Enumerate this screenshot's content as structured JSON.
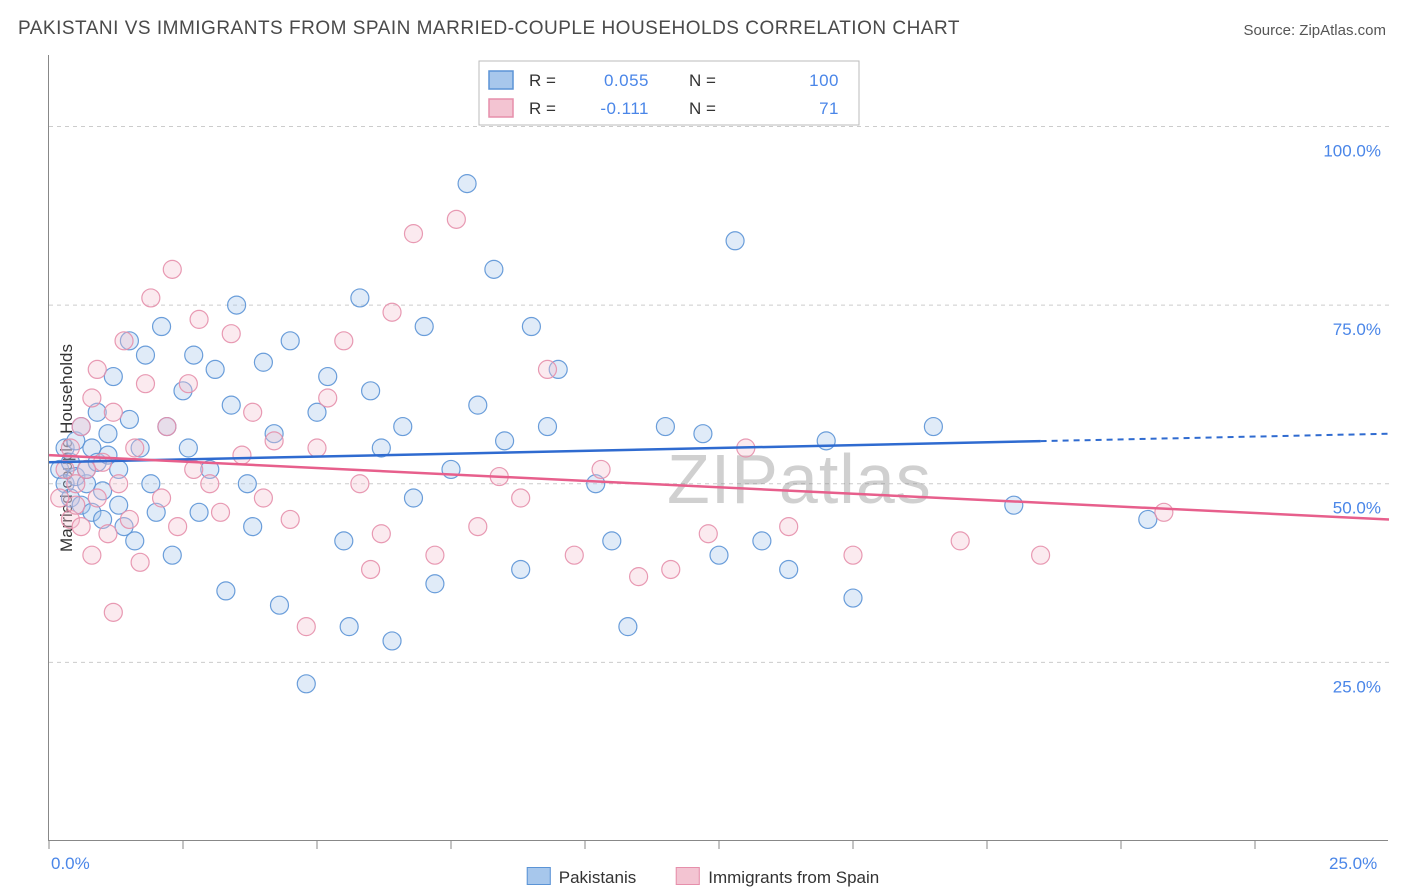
{
  "title": "PAKISTANI VS IMMIGRANTS FROM SPAIN MARRIED-COUPLE HOUSEHOLDS CORRELATION CHART",
  "source": "Source: ZipAtlas.com",
  "ylabel": "Married-couple Households",
  "watermark": "ZIPatlas",
  "chart": {
    "type": "scatter",
    "background_color": "#ffffff",
    "grid_color": "#cccccc",
    "axis_color": "#888888",
    "xlim": [
      0,
      25
    ],
    "ylim": [
      0,
      110
    ],
    "ytick_positions": [
      25,
      50,
      75,
      100
    ],
    "ytick_labels": [
      "25.0%",
      "50.0%",
      "75.0%",
      "100.0%"
    ],
    "x_axis_labels": {
      "left": "0.0%",
      "right": "25.0%"
    },
    "xtick_positions": [
      0,
      2.5,
      5,
      7.5,
      10,
      12.5,
      15,
      17.5,
      20,
      22.5
    ],
    "point_radius": 9
  },
  "series": [
    {
      "name": "Pakistanis",
      "fill": "#a7c7ec",
      "stroke": "#5b94d6",
      "trend_color": "#2f6bd0",
      "R": "0.055",
      "N": "100",
      "trend": {
        "y_at_x0": 53.0,
        "y_at_xmax": 57.0,
        "solid_until_x": 18.5
      },
      "points": [
        [
          0.2,
          52
        ],
        [
          0.3,
          50
        ],
        [
          0.3,
          55
        ],
        [
          0.4,
          48
        ],
        [
          0.4,
          53
        ],
        [
          0.5,
          56
        ],
        [
          0.5,
          51
        ],
        [
          0.6,
          47
        ],
        [
          0.6,
          58
        ],
        [
          0.7,
          50
        ],
        [
          0.7,
          52
        ],
        [
          0.8,
          55
        ],
        [
          0.8,
          46
        ],
        [
          0.9,
          53
        ],
        [
          0.9,
          60
        ],
        [
          1.0,
          49
        ],
        [
          1.0,
          45
        ],
        [
          1.1,
          57
        ],
        [
          1.1,
          54
        ],
        [
          1.2,
          65
        ],
        [
          1.3,
          52
        ],
        [
          1.3,
          47
        ],
        [
          1.4,
          44
        ],
        [
          1.5,
          59
        ],
        [
          1.5,
          70
        ],
        [
          1.6,
          42
        ],
        [
          1.7,
          55
        ],
        [
          1.8,
          68
        ],
        [
          1.9,
          50
        ],
        [
          2.0,
          46
        ],
        [
          2.1,
          72
        ],
        [
          2.2,
          58
        ],
        [
          2.3,
          40
        ],
        [
          2.5,
          63
        ],
        [
          2.6,
          55
        ],
        [
          2.7,
          68
        ],
        [
          2.8,
          46
        ],
        [
          3.0,
          52
        ],
        [
          3.1,
          66
        ],
        [
          3.3,
          35
        ],
        [
          3.4,
          61
        ],
        [
          3.5,
          75
        ],
        [
          3.7,
          50
        ],
        [
          3.8,
          44
        ],
        [
          4.0,
          67
        ],
        [
          4.2,
          57
        ],
        [
          4.3,
          33
        ],
        [
          4.5,
          70
        ],
        [
          4.8,
          22
        ],
        [
          5.0,
          60
        ],
        [
          5.2,
          65
        ],
        [
          5.5,
          42
        ],
        [
          5.6,
          30
        ],
        [
          5.8,
          76
        ],
        [
          6.0,
          63
        ],
        [
          6.2,
          55
        ],
        [
          6.4,
          28
        ],
        [
          6.6,
          58
        ],
        [
          6.8,
          48
        ],
        [
          7.0,
          72
        ],
        [
          7.2,
          36
        ],
        [
          7.5,
          52
        ],
        [
          7.8,
          92
        ],
        [
          8.0,
          61
        ],
        [
          8.3,
          80
        ],
        [
          8.5,
          56
        ],
        [
          8.8,
          38
        ],
        [
          9.0,
          72
        ],
        [
          9.3,
          58
        ],
        [
          9.5,
          66
        ],
        [
          10.2,
          50
        ],
        [
          10.5,
          42
        ],
        [
          10.8,
          30
        ],
        [
          11.5,
          58
        ],
        [
          12.2,
          57
        ],
        [
          12.5,
          40
        ],
        [
          12.8,
          84
        ],
        [
          13.3,
          42
        ],
        [
          13.8,
          38
        ],
        [
          14.5,
          56
        ],
        [
          15.0,
          34
        ],
        [
          16.5,
          58
        ],
        [
          18.0,
          47
        ],
        [
          20.5,
          45
        ]
      ]
    },
    {
      "name": "Immigrants from Spain",
      "fill": "#f3c4d2",
      "stroke": "#e68fab",
      "trend_color": "#e75f8c",
      "R": "-0.111",
      "N": "71",
      "trend": {
        "y_at_x0": 54.0,
        "y_at_xmax": 45.0,
        "solid_until_x": 25
      },
      "points": [
        [
          0.2,
          48
        ],
        [
          0.3,
          52
        ],
        [
          0.4,
          55
        ],
        [
          0.4,
          45
        ],
        [
          0.5,
          50
        ],
        [
          0.5,
          47
        ],
        [
          0.6,
          58
        ],
        [
          0.6,
          44
        ],
        [
          0.7,
          52
        ],
        [
          0.8,
          62
        ],
        [
          0.8,
          40
        ],
        [
          0.9,
          48
        ],
        [
          0.9,
          66
        ],
        [
          1.0,
          53
        ],
        [
          1.1,
          43
        ],
        [
          1.2,
          60
        ],
        [
          1.2,
          32
        ],
        [
          1.3,
          50
        ],
        [
          1.4,
          70
        ],
        [
          1.5,
          45
        ],
        [
          1.6,
          55
        ],
        [
          1.7,
          39
        ],
        [
          1.8,
          64
        ],
        [
          1.9,
          76
        ],
        [
          2.1,
          48
        ],
        [
          2.2,
          58
        ],
        [
          2.3,
          80
        ],
        [
          2.4,
          44
        ],
        [
          2.6,
          64
        ],
        [
          2.7,
          52
        ],
        [
          2.8,
          73
        ],
        [
          3.0,
          50
        ],
        [
          3.2,
          46
        ],
        [
          3.4,
          71
        ],
        [
          3.6,
          54
        ],
        [
          3.8,
          60
        ],
        [
          4.0,
          48
        ],
        [
          4.2,
          56
        ],
        [
          4.5,
          45
        ],
        [
          4.8,
          30
        ],
        [
          5.0,
          55
        ],
        [
          5.2,
          62
        ],
        [
          5.5,
          70
        ],
        [
          5.8,
          50
        ],
        [
          6.0,
          38
        ],
        [
          6.2,
          43
        ],
        [
          6.4,
          74
        ],
        [
          6.8,
          85
        ],
        [
          7.2,
          40
        ],
        [
          7.6,
          87
        ],
        [
          8.0,
          44
        ],
        [
          8.4,
          51
        ],
        [
          8.8,
          48
        ],
        [
          9.3,
          66
        ],
        [
          9.8,
          40
        ],
        [
          10.3,
          52
        ],
        [
          11.0,
          37
        ],
        [
          11.6,
          38
        ],
        [
          12.3,
          43
        ],
        [
          13.0,
          55
        ],
        [
          13.8,
          44
        ],
        [
          15.0,
          40
        ],
        [
          17.0,
          42
        ],
        [
          18.5,
          40
        ],
        [
          20.8,
          46
        ]
      ]
    }
  ],
  "stats_box": {
    "rows": [
      {
        "series_idx": 0,
        "R_label": "R =",
        "N_label": "N ="
      },
      {
        "series_idx": 1,
        "R_label": "R =",
        "N_label": "N ="
      }
    ]
  },
  "bottom_legend": [
    {
      "series_idx": 0
    },
    {
      "series_idx": 1
    }
  ]
}
